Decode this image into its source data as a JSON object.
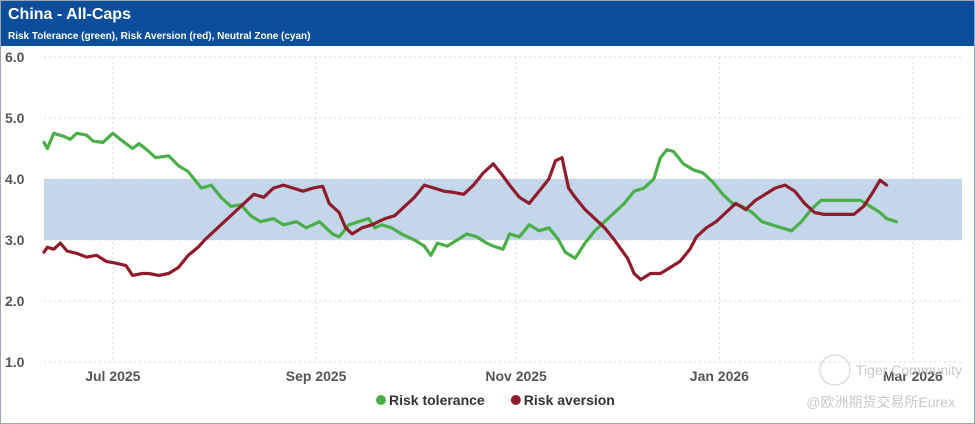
{
  "header": {
    "title": "China - All-Caps",
    "subtitle": "Risk Tolerance (green), Risk Aversion (red), Neutral Zone (cyan)"
  },
  "watermark": {
    "line1": "Tiger Community",
    "line2": "@欧洲期货交易所Eurex"
  },
  "colors": {
    "tolerance": "#4aaf48",
    "aversion": "#8e1c2c",
    "neutral_band": "#c4d7ea",
    "header": "#0b4f9c"
  },
  "chart_data": {
    "type": "line",
    "title": "China - All-Caps",
    "subtitle": "Risk Tolerance (green), Risk Aversion (red), Neutral Zone (cyan)",
    "ylim": [
      1.0,
      6.0
    ],
    "yticks": [
      "6.0",
      "5.0",
      "4.0",
      "3.0",
      "2.0",
      "1.0"
    ],
    "ytick_values": [
      6.0,
      5.0,
      4.0,
      3.0,
      2.0,
      1.0
    ],
    "xlim": [
      0,
      280
    ],
    "xticks": [
      {
        "label": "Jul 2025",
        "pos": 21
      },
      {
        "label": "Sep 2025",
        "pos": 83
      },
      {
        "label": "Nov 2025",
        "pos": 144
      },
      {
        "label": "Jan 2026",
        "pos": 206
      },
      {
        "label": "Mar 2026",
        "pos": 265
      }
    ],
    "neutral_zone": [
      3.0,
      4.0
    ],
    "legend_position": "bottom-center",
    "series": [
      {
        "name": "Risk tolerance",
        "color": "#4aaf48",
        "points": [
          [
            0,
            4.6
          ],
          [
            1,
            4.5
          ],
          [
            3,
            4.75
          ],
          [
            6,
            4.7
          ],
          [
            8,
            4.65
          ],
          [
            10,
            4.75
          ],
          [
            13,
            4.72
          ],
          [
            15,
            4.62
          ],
          [
            18,
            4.6
          ],
          [
            21,
            4.75
          ],
          [
            24,
            4.62
          ],
          [
            27,
            4.5
          ],
          [
            29,
            4.58
          ],
          [
            32,
            4.45
          ],
          [
            34,
            4.35
          ],
          [
            38,
            4.38
          ],
          [
            41,
            4.22
          ],
          [
            44,
            4.12
          ],
          [
            48,
            3.85
          ],
          [
            51,
            3.9
          ],
          [
            54,
            3.7
          ],
          [
            57,
            3.55
          ],
          [
            60,
            3.58
          ],
          [
            63,
            3.4
          ],
          [
            66,
            3.3
          ],
          [
            70,
            3.35
          ],
          [
            73,
            3.25
          ],
          [
            77,
            3.3
          ],
          [
            80,
            3.2
          ],
          [
            84,
            3.3
          ],
          [
            88,
            3.1
          ],
          [
            90,
            3.05
          ],
          [
            93,
            3.25
          ],
          [
            96,
            3.3
          ],
          [
            99,
            3.35
          ],
          [
            101,
            3.2
          ],
          [
            103,
            3.25
          ],
          [
            106,
            3.2
          ],
          [
            109,
            3.1
          ],
          [
            113,
            3.0
          ],
          [
            116,
            2.9
          ],
          [
            118,
            2.75
          ],
          [
            120,
            2.95
          ],
          [
            123,
            2.9
          ],
          [
            126,
            3.0
          ],
          [
            129,
            3.1
          ],
          [
            132,
            3.05
          ],
          [
            135,
            2.95
          ],
          [
            137,
            2.9
          ],
          [
            140,
            2.85
          ],
          [
            142,
            3.1
          ],
          [
            145,
            3.05
          ],
          [
            148,
            3.25
          ],
          [
            151,
            3.15
          ],
          [
            154,
            3.2
          ],
          [
            157,
            3.0
          ],
          [
            159,
            2.8
          ],
          [
            162,
            2.7
          ],
          [
            165,
            2.95
          ],
          [
            168,
            3.15
          ],
          [
            171,
            3.3
          ],
          [
            174,
            3.45
          ],
          [
            177,
            3.6
          ],
          [
            180,
            3.8
          ],
          [
            183,
            3.85
          ],
          [
            186,
            4.0
          ],
          [
            188,
            4.35
          ],
          [
            190,
            4.48
          ],
          [
            192,
            4.45
          ],
          [
            195,
            4.25
          ],
          [
            198,
            4.15
          ],
          [
            201,
            4.1
          ],
          [
            204,
            3.95
          ],
          [
            207,
            3.75
          ],
          [
            210,
            3.6
          ],
          [
            213,
            3.55
          ],
          [
            216,
            3.45
          ],
          [
            219,
            3.3
          ],
          [
            222,
            3.25
          ],
          [
            225,
            3.2
          ],
          [
            228,
            3.15
          ],
          [
            231,
            3.3
          ],
          [
            234,
            3.5
          ],
          [
            237,
            3.65
          ],
          [
            240,
            3.65
          ],
          [
            243,
            3.65
          ],
          [
            246,
            3.65
          ],
          [
            249,
            3.65
          ],
          [
            252,
            3.55
          ],
          [
            255,
            3.45
          ],
          [
            257,
            3.35
          ],
          [
            260,
            3.3
          ]
        ]
      },
      {
        "name": "Risk aversion",
        "color": "#8e1c2c",
        "points": [
          [
            0,
            2.8
          ],
          [
            1,
            2.88
          ],
          [
            3,
            2.85
          ],
          [
            5,
            2.95
          ],
          [
            7,
            2.82
          ],
          [
            10,
            2.78
          ],
          [
            13,
            2.72
          ],
          [
            16,
            2.75
          ],
          [
            19,
            2.65
          ],
          [
            22,
            2.62
          ],
          [
            25,
            2.58
          ],
          [
            27,
            2.42
          ],
          [
            30,
            2.45
          ],
          [
            32,
            2.45
          ],
          [
            35,
            2.42
          ],
          [
            38,
            2.45
          ],
          [
            41,
            2.55
          ],
          [
            44,
            2.75
          ],
          [
            47,
            2.88
          ],
          [
            49,
            3.0
          ],
          [
            52,
            3.15
          ],
          [
            55,
            3.3
          ],
          [
            58,
            3.45
          ],
          [
            61,
            3.6
          ],
          [
            64,
            3.75
          ],
          [
            67,
            3.7
          ],
          [
            70,
            3.85
          ],
          [
            73,
            3.9
          ],
          [
            76,
            3.85
          ],
          [
            79,
            3.8
          ],
          [
            82,
            3.85
          ],
          [
            85,
            3.88
          ],
          [
            87,
            3.6
          ],
          [
            90,
            3.45
          ],
          [
            92,
            3.2
          ],
          [
            94,
            3.1
          ],
          [
            97,
            3.2
          ],
          [
            100,
            3.25
          ],
          [
            104,
            3.35
          ],
          [
            107,
            3.4
          ],
          [
            110,
            3.55
          ],
          [
            113,
            3.7
          ],
          [
            116,
            3.9
          ],
          [
            119,
            3.85
          ],
          [
            122,
            3.8
          ],
          [
            125,
            3.78
          ],
          [
            128,
            3.75
          ],
          [
            131,
            3.9
          ],
          [
            134,
            4.1
          ],
          [
            137,
            4.25
          ],
          [
            140,
            4.05
          ],
          [
            142,
            3.9
          ],
          [
            145,
            3.7
          ],
          [
            148,
            3.6
          ],
          [
            151,
            3.8
          ],
          [
            154,
            4.0
          ],
          [
            156,
            4.3
          ],
          [
            158,
            4.35
          ],
          [
            160,
            3.85
          ],
          [
            162,
            3.7
          ],
          [
            165,
            3.5
          ],
          [
            168,
            3.35
          ],
          [
            171,
            3.2
          ],
          [
            174,
            3.0
          ],
          [
            176,
            2.85
          ],
          [
            178,
            2.7
          ],
          [
            180,
            2.45
          ],
          [
            182,
            2.35
          ],
          [
            185,
            2.45
          ],
          [
            188,
            2.45
          ],
          [
            191,
            2.55
          ],
          [
            194,
            2.65
          ],
          [
            197,
            2.85
          ],
          [
            199,
            3.05
          ],
          [
            202,
            3.2
          ],
          [
            205,
            3.3
          ],
          [
            208,
            3.45
          ],
          [
            211,
            3.6
          ],
          [
            214,
            3.5
          ],
          [
            217,
            3.65
          ],
          [
            220,
            3.75
          ],
          [
            223,
            3.85
          ],
          [
            226,
            3.9
          ],
          [
            229,
            3.8
          ],
          [
            232,
            3.6
          ],
          [
            235,
            3.45
          ],
          [
            238,
            3.42
          ],
          [
            241,
            3.42
          ],
          [
            244,
            3.42
          ],
          [
            247,
            3.42
          ],
          [
            250,
            3.55
          ],
          [
            253,
            3.8
          ],
          [
            255,
            3.98
          ],
          [
            257,
            3.9
          ]
        ]
      }
    ]
  }
}
